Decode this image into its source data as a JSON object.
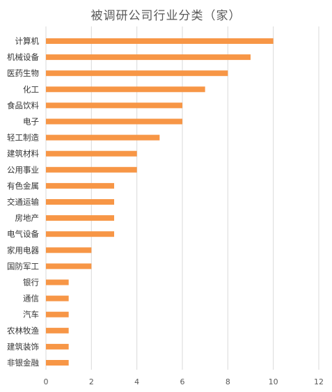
{
  "chart_data": {
    "type": "bar",
    "orientation": "horizontal",
    "title": "被调研公司行业分类（家）",
    "categories": [
      "计算机",
      "机械设备",
      "医药生物",
      "化工",
      "食品饮料",
      "电子",
      "轻工制造",
      "建筑材料",
      "公用事业",
      "有色金属",
      "交通运输",
      "房地产",
      "电气设备",
      "家用电器",
      "国防军工",
      "银行",
      "通信",
      "汽车",
      "农林牧渔",
      "建筑装饰",
      "非银金融"
    ],
    "values": [
      10,
      9,
      8,
      7,
      6,
      6,
      5,
      4,
      4,
      3,
      3,
      3,
      3,
      2,
      2,
      1,
      1,
      1,
      1,
      1,
      1
    ],
    "xlim": [
      0,
      12
    ],
    "xticks": [
      "0",
      "2",
      "4",
      "6",
      "8",
      "10",
      "12"
    ],
    "grid": "vertical",
    "bar_color": "#F79646",
    "grid_color": "#D9D9D9",
    "legend": "none"
  }
}
